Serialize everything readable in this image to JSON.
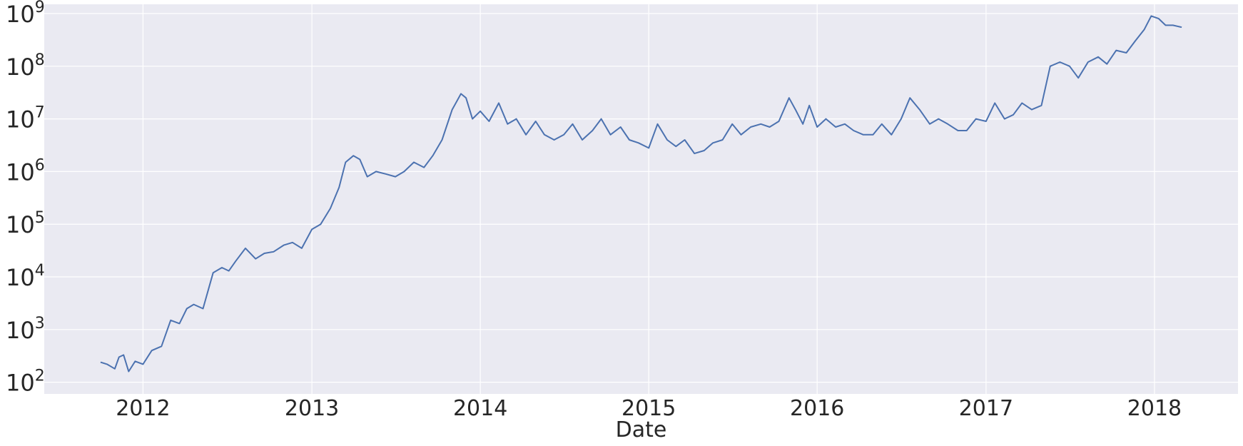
{
  "chart_data": {
    "type": "line",
    "title": "",
    "xlabel": "Date",
    "ylabel": "",
    "y_scale": "log",
    "grid": true,
    "background": "#eaeaf2",
    "series_color": "#4c72b0",
    "xlim": [
      "2011-06-01",
      "2018-07-01"
    ],
    "ylim": [
      60,
      1500000000
    ],
    "x_ticks": [
      {
        "date": "2012-01-01",
        "label": "2012"
      },
      {
        "date": "2013-01-01",
        "label": "2013"
      },
      {
        "date": "2014-01-01",
        "label": "2014"
      },
      {
        "date": "2015-01-01",
        "label": "2015"
      },
      {
        "date": "2016-01-01",
        "label": "2016"
      },
      {
        "date": "2017-01-01",
        "label": "2017"
      },
      {
        "date": "2018-01-01",
        "label": "2018"
      }
    ],
    "y_ticks": [
      {
        "value": 100,
        "base": "10",
        "exp": "2"
      },
      {
        "value": 1000,
        "base": "10",
        "exp": "3"
      },
      {
        "value": 10000,
        "base": "10",
        "exp": "4"
      },
      {
        "value": 100000,
        "base": "10",
        "exp": "5"
      },
      {
        "value": 1000000,
        "base": "10",
        "exp": "6"
      },
      {
        "value": 10000000,
        "base": "10",
        "exp": "7"
      },
      {
        "value": 100000000,
        "base": "10",
        "exp": "8"
      },
      {
        "value": 1000000000,
        "base": "10",
        "exp": "9"
      }
    ],
    "series": [
      {
        "x": [
          "2011-10-01",
          "2011-10-15",
          "2011-11-01",
          "2011-11-10",
          "2011-11-20",
          "2011-12-01",
          "2011-12-15",
          "2012-01-01",
          "2012-01-20",
          "2012-02-10",
          "2012-03-01",
          "2012-03-20",
          "2012-04-05",
          "2012-04-20",
          "2012-05-10",
          "2012-06-01",
          "2012-06-20",
          "2012-07-05",
          "2012-07-20",
          "2012-08-10",
          "2012-09-01",
          "2012-09-20",
          "2012-10-10",
          "2012-11-01",
          "2012-11-20",
          "2012-12-10",
          "2013-01-01",
          "2013-01-20",
          "2013-02-10",
          "2013-03-01",
          "2013-03-15",
          "2013-04-01",
          "2013-04-15",
          "2013-05-01",
          "2013-05-20",
          "2013-06-10",
          "2013-07-01",
          "2013-07-20",
          "2013-08-10",
          "2013-09-01",
          "2013-09-20",
          "2013-10-10",
          "2013-11-01",
          "2013-11-20",
          "2013-12-01",
          "2013-12-15",
          "2014-01-01",
          "2014-01-20",
          "2014-02-10",
          "2014-03-01",
          "2014-03-20",
          "2014-04-10",
          "2014-05-01",
          "2014-05-20",
          "2014-06-10",
          "2014-07-01",
          "2014-07-20",
          "2014-08-10",
          "2014-09-01",
          "2014-09-20",
          "2014-10-10",
          "2014-11-01",
          "2014-11-20",
          "2014-12-10",
          "2015-01-01",
          "2015-01-20",
          "2015-02-10",
          "2015-03-01",
          "2015-03-20",
          "2015-04-10",
          "2015-05-01",
          "2015-05-20",
          "2015-06-10",
          "2015-07-01",
          "2015-07-20",
          "2015-08-10",
          "2015-09-01",
          "2015-09-20",
          "2015-10-10",
          "2015-11-01",
          "2015-11-15",
          "2015-12-01",
          "2015-12-15",
          "2016-01-01",
          "2016-01-20",
          "2016-02-10",
          "2016-03-01",
          "2016-03-20",
          "2016-04-10",
          "2016-05-01",
          "2016-05-20",
          "2016-06-10",
          "2016-07-01",
          "2016-07-20",
          "2016-08-10",
          "2016-09-01",
          "2016-09-20",
          "2016-10-10",
          "2016-11-01",
          "2016-11-20",
          "2016-12-10",
          "2017-01-01",
          "2017-01-20",
          "2017-02-10",
          "2017-03-01",
          "2017-03-20",
          "2017-04-10",
          "2017-05-01",
          "2017-05-20",
          "2017-06-10",
          "2017-07-01",
          "2017-07-20",
          "2017-08-10",
          "2017-09-01",
          "2017-09-20",
          "2017-10-10",
          "2017-11-01",
          "2017-11-20",
          "2017-12-10",
          "2017-12-25",
          "2018-01-10",
          "2018-01-25",
          "2018-02-10",
          "2018-03-01"
        ],
        "values": [
          240,
          220,
          180,
          300,
          330,
          160,
          250,
          220,
          400,
          480,
          1500,
          1300,
          2500,
          3000,
          2500,
          12000,
          15000,
          13000,
          20000,
          35000,
          22000,
          28000,
          30000,
          40000,
          45000,
          35000,
          80000,
          100000,
          200000,
          500000,
          1500000,
          2000000,
          1700000,
          800000,
          1000000,
          900000,
          800000,
          1000000,
          1500000,
          1200000,
          2000000,
          4000000,
          15000000,
          30000000,
          25000000,
          10000000,
          14000000,
          9000000,
          20000000,
          8000000,
          10000000,
          5000000,
          9000000,
          5000000,
          4000000,
          5000000,
          8000000,
          4000000,
          6000000,
          10000000,
          5000000,
          7000000,
          4000000,
          3500000,
          2800000,
          8000000,
          4000000,
          3000000,
          4000000,
          2200000,
          2500000,
          3500000,
          4000000,
          8000000,
          5000000,
          7000000,
          8000000,
          7000000,
          9000000,
          25000000,
          15000000,
          8000000,
          18000000,
          7000000,
          10000000,
          7000000,
          8000000,
          6000000,
          5000000,
          5000000,
          8000000,
          5000000,
          10000000,
          25000000,
          15000000,
          8000000,
          10000000,
          8000000,
          6000000,
          6000000,
          10000000,
          9000000,
          20000000,
          10000000,
          12000000,
          20000000,
          15000000,
          18000000,
          100000000,
          120000000,
          100000000,
          60000000,
          120000000,
          150000000,
          110000000,
          200000000,
          180000000,
          300000000,
          500000000,
          900000000,
          800000000,
          600000000,
          600000000,
          550000000
        ]
      }
    ]
  }
}
